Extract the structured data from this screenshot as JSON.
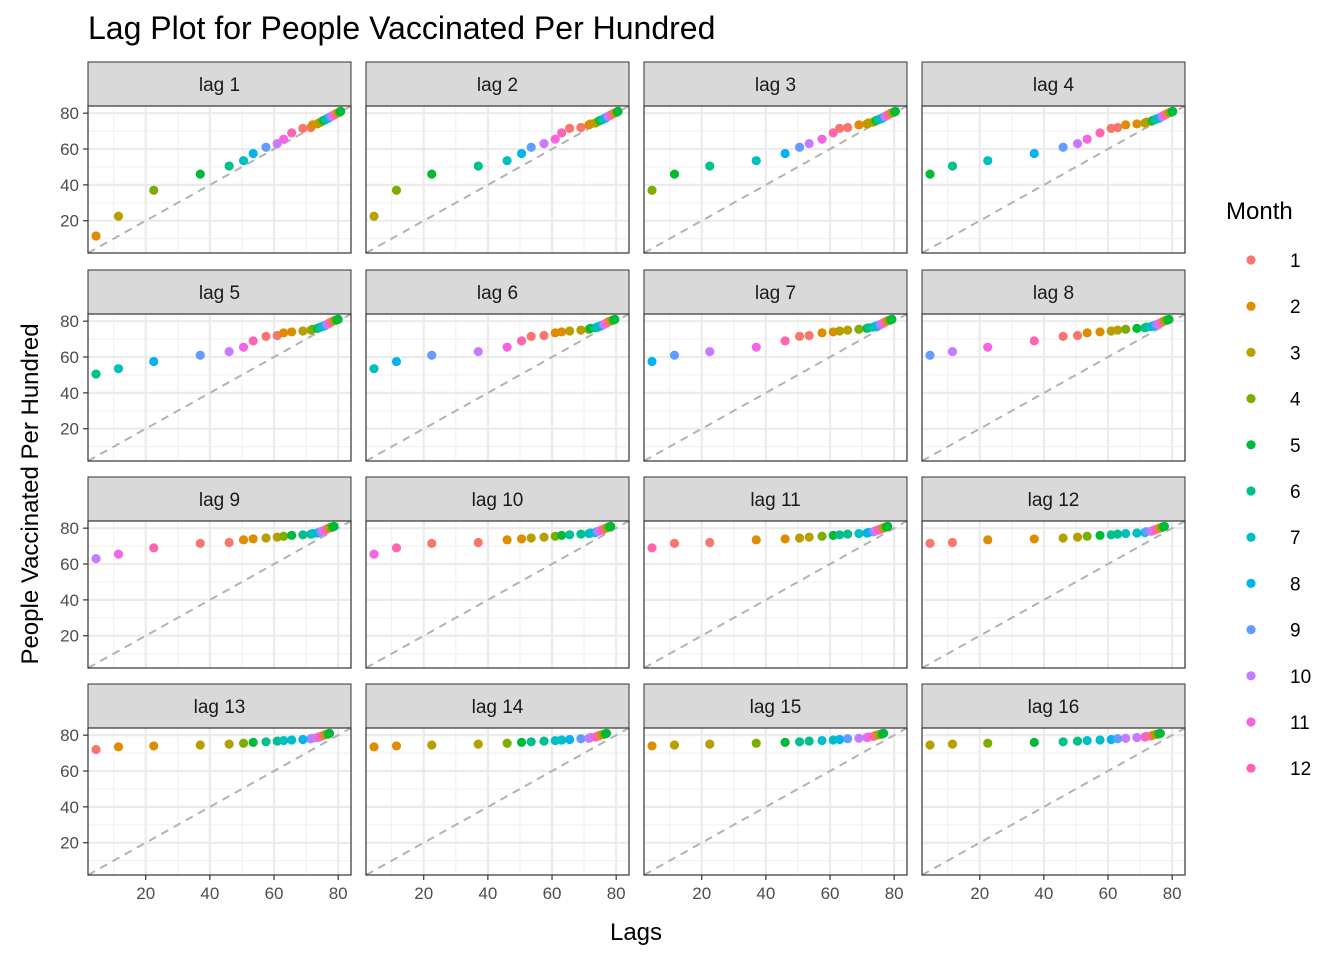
{
  "chart_data": {
    "type": "scatter",
    "title": "Lag Plot for People Vaccinated Per Hundred",
    "xlabel": "Lags",
    "ylabel": "People Vaccinated Per Hundred",
    "xlim": [
      2,
      84
    ],
    "ylim": [
      2,
      84
    ],
    "xticks": [
      20,
      40,
      60,
      80
    ],
    "yticks": [
      20,
      40,
      60,
      80
    ],
    "grid": true,
    "reference_line": "y = x (dashed)",
    "legend": {
      "title": "Month",
      "placement": "right",
      "entries": [
        "1",
        "2",
        "3",
        "4",
        "5",
        "6",
        "7",
        "8",
        "9",
        "10",
        "11",
        "12"
      ]
    },
    "colors": [
      "#F8766D",
      "#DE8C00",
      "#B79F00",
      "#7CAE00",
      "#00BA38",
      "#00C08B",
      "#00BFC4",
      "#00B4F0",
      "#619CFF",
      "#C77CFF",
      "#F564E3",
      "#FF64B0"
    ],
    "series_values": [
      {
        "value": 4.5,
        "month": 2
      },
      {
        "value": 11.5,
        "month": 2
      },
      {
        "value": 22.5,
        "month": 3
      },
      {
        "value": 37.0,
        "month": 4
      },
      {
        "value": 46.0,
        "month": 5
      },
      {
        "value": 50.5,
        "month": 6
      },
      {
        "value": 53.5,
        "month": 7
      },
      {
        "value": 57.5,
        "month": 8
      },
      {
        "value": 61.0,
        "month": 9
      },
      {
        "value": 63.0,
        "month": 10
      },
      {
        "value": 65.5,
        "month": 11
      },
      {
        "value": 69.0,
        "month": 12
      },
      {
        "value": 71.5,
        "month": 1
      },
      {
        "value": 72.0,
        "month": 1
      },
      {
        "value": 73.5,
        "month": 2
      },
      {
        "value": 74.0,
        "month": 2
      },
      {
        "value": 74.5,
        "month": 3
      },
      {
        "value": 75.0,
        "month": 3
      },
      {
        "value": 75.5,
        "month": 4
      },
      {
        "value": 76.0,
        "month": 5
      },
      {
        "value": 76.3,
        "month": 6
      },
      {
        "value": 76.7,
        "month": 6
      },
      {
        "value": 77.0,
        "month": 7
      },
      {
        "value": 77.3,
        "month": 7
      },
      {
        "value": 77.6,
        "month": 8
      },
      {
        "value": 78.0,
        "month": 9
      },
      {
        "value": 78.3,
        "month": 10
      },
      {
        "value": 78.7,
        "month": 10
      },
      {
        "value": 79.0,
        "month": 11
      },
      {
        "value": 79.3,
        "month": 12
      },
      {
        "value": 79.6,
        "month": 12
      },
      {
        "value": 80.0,
        "month": 1
      },
      {
        "value": 80.2,
        "month": 2
      },
      {
        "value": 80.4,
        "month": 3
      },
      {
        "value": 80.6,
        "month": 4
      },
      {
        "value": 80.8,
        "month": 5
      },
      {
        "value": 81.0,
        "month": 5
      }
    ],
    "panels": [
      "lag 1",
      "lag 2",
      "lag 3",
      "lag 4",
      "lag 5",
      "lag 6",
      "lag 7",
      "lag 8",
      "lag 9",
      "lag 10",
      "lag 11",
      "lag 12",
      "lag 13",
      "lag 14",
      "lag 15",
      "lag 16"
    ]
  }
}
